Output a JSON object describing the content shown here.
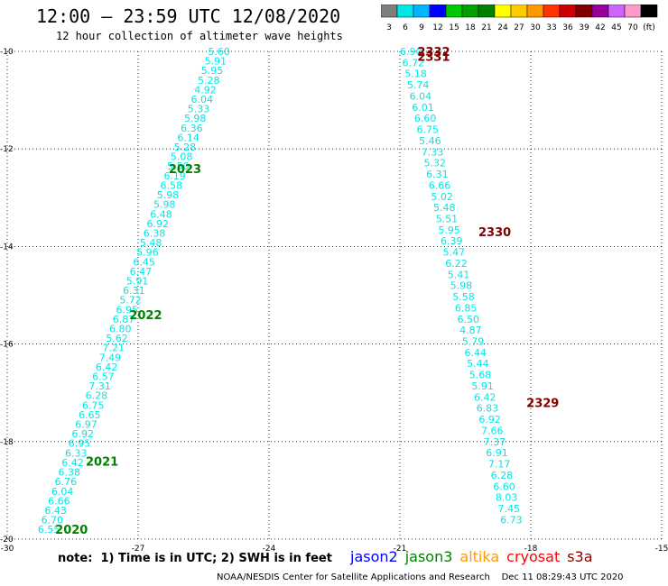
{
  "header": {
    "title": "12:00 – 23:59 UTC 12/08/2020",
    "subtitle": "12 hour collection of altimeter wave heights"
  },
  "colorbar": {
    "labels": [
      "3",
      "6",
      "9",
      "12",
      "15",
      "18",
      "21",
      "24",
      "27",
      "30",
      "33",
      "36",
      "39",
      "42",
      "45",
      "70",
      "(ft)"
    ],
    "colors": [
      "#7f7f7f",
      "#00e6e6",
      "#00b4ff",
      "#0000ff",
      "#00c800",
      "#00a000",
      "#008000",
      "#ffff00",
      "#ffcc00",
      "#ff9900",
      "#ff3300",
      "#cc0000",
      "#800000",
      "#990099",
      "#cc66ff",
      "#ff99cc",
      "#000000"
    ]
  },
  "footer": {
    "note": "note:  1) Time is in UTC; 2) SWH is in feet",
    "credit": "NOAA/NESDIS Center for Satellite Applications and Research    Dec 11 08:29:43 UTC 2020"
  },
  "legend": [
    {
      "name": "jason2",
      "color": "#0000ff"
    },
    {
      "name": "jason3",
      "color": "#008000"
    },
    {
      "name": "altika",
      "color": "#ff9900"
    },
    {
      "name": "cryosat",
      "color": "#ff0000"
    },
    {
      "name": "s3a",
      "color": "#800000"
    }
  ],
  "chart_data": {
    "type": "scatter",
    "title": "12:00 – 23:59 UTC 12/08/2020",
    "xlim": [
      -30,
      -15
    ],
    "ylim": [
      -20,
      -10
    ],
    "xticks": [
      -30,
      -27,
      -24,
      -21,
      -18,
      -15
    ],
    "yticks": [
      -10,
      -12,
      -14,
      -16,
      -18,
      -20
    ],
    "grid": true,
    "value_color": "#00e6e6",
    "series": [
      {
        "track": "west",
        "values": [
          "5.60",
          "5.91",
          "5.95",
          "5.28",
          "4.92",
          "6.04",
          "5.33",
          "5.98",
          "6.36",
          "6.14",
          "5.28",
          "5.08",
          "5.50",
          "6.19",
          "6.58",
          "5.98",
          "5.98",
          "6.48",
          "6.92",
          "6.38",
          "5.48",
          "5.96",
          "6.45",
          "6.47",
          "5.91",
          "6.31",
          "5.72",
          "6.95",
          "6.87",
          "6.80",
          "5.62",
          "7.21",
          "7.49",
          "6.42",
          "6.57",
          "7.31",
          "6.28",
          "6.75",
          "6.65",
          "6.97",
          "6.92",
          "6.95",
          "6.33",
          "6.42",
          "6.38",
          "6.76",
          "6.04",
          "6.66",
          "6.43",
          "6.70",
          "6.55"
        ],
        "lon_start": -25.4,
        "lat_start": -10.0,
        "lon_end": -29.3,
        "lat_end": -19.8,
        "passes": [
          {
            "label": "2023",
            "lon": -26.3,
            "lat": -12.4
          },
          {
            "label": "2022",
            "lon": -27.2,
            "lat": -15.4
          },
          {
            "label": "2021",
            "lon": -28.2,
            "lat": -18.4
          },
          {
            "label": "2020",
            "lon": -28.9,
            "lat": -19.8
          }
        ]
      },
      {
        "track": "east",
        "values": [
          "6.90",
          "6.72",
          "5.18",
          "5.74",
          "6.04",
          "6.01",
          "6.60",
          "6.75",
          "5.46",
          "7.33",
          "5.32",
          "6.31",
          "6.66",
          "5.02",
          "5.48",
          "5.51",
          "5.95",
          "6.39",
          "5.47",
          "6.22",
          "5.41",
          "5.98",
          "5.58",
          "6.85",
          "6.50",
          "4.87",
          "5.79",
          "6.44",
          "5.44",
          "5.68",
          "5.91",
          "6.42",
          "6.83",
          "6.92",
          "7.66",
          "7.37",
          "6.91",
          "7.17",
          "6.28",
          "6.60",
          "8.03",
          "7.45",
          "6.73"
        ],
        "lon_start": -21.0,
        "lat_start": -10.0,
        "lon_end": -18.7,
        "lat_end": -19.6,
        "passes": [
          {
            "label": "2332",
            "lon": -20.6,
            "lat": -10.0
          },
          {
            "label": "2331",
            "lon": -20.6,
            "lat": -10.1
          },
          {
            "label": "2330",
            "lon": -19.2,
            "lat": -13.7
          },
          {
            "label": "2329",
            "lon": -18.1,
            "lat": -17.2
          }
        ]
      }
    ]
  }
}
